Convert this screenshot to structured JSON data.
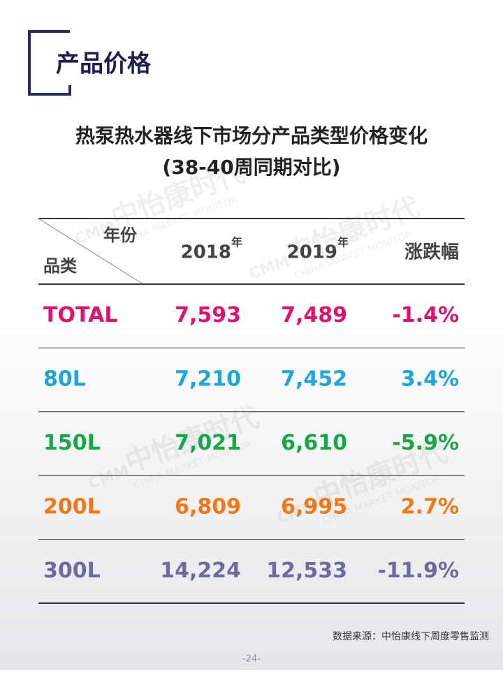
{
  "header": {
    "title": "产品价格"
  },
  "table_title": [
    "热泵热水器线下市场分产品类型价格变化",
    "(38-40周同期对比)"
  ],
  "watermark": {
    "brand": "中怡康时代",
    "english": "CHINA MARKET MONITOR",
    "logo": "CMM"
  },
  "table": {
    "header": {
      "corner_top": "年份",
      "corner_bottom": "品类",
      "columns": [
        {
          "year": "2018",
          "suffix": "年"
        },
        {
          "year": "2019",
          "suffix": "年"
        },
        {
          "year": "涨跌幅"
        }
      ]
    },
    "rows": [
      {
        "cells": [
          "TOTAL",
          "7,593",
          "7,489",
          "-1.4%"
        ],
        "color": "#e0136c"
      },
      {
        "cells": [
          "80L",
          "7,210",
          "7,452",
          "3.4%"
        ],
        "color": "#1ea5d9"
      },
      {
        "cells": [
          "150L",
          "7,021",
          "6,610",
          "-5.9%"
        ],
        "color": "#19a64a"
      },
      {
        "cells": [
          "200L",
          "6,809",
          "6,995",
          "2.7%"
        ],
        "color": "#f07818"
      },
      {
        "cells": [
          "300L",
          "14,224",
          "12,533",
          "-11.9%"
        ],
        "color": "#6c6c9c"
      }
    ]
  },
  "source": "数据来源：中怡康线下周度零售监测",
  "page_number": "-24-"
}
